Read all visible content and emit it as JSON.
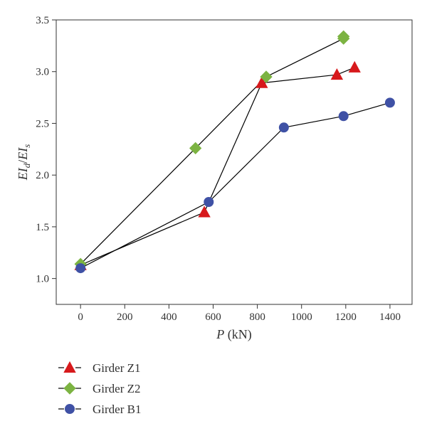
{
  "chart_data": {
    "type": "line",
    "xlabel": {
      "italic": "P",
      "rest": " (kN)"
    },
    "ylabel": {
      "a": "EI",
      "a_sub": "d",
      "sep": "/",
      "b": "EI",
      "b_sub": "s"
    },
    "xlim": [
      -110,
      1500
    ],
    "ylim": [
      0.75,
      3.5
    ],
    "xticks": [
      0,
      200,
      400,
      600,
      800,
      1000,
      1200,
      1400
    ],
    "yticks": [
      1.0,
      1.5,
      2.0,
      2.5,
      3.0,
      3.5
    ],
    "ytick_labels": [
      "1.0",
      "1.5",
      "2.0",
      "2.5",
      "3.0",
      "3.5"
    ],
    "grid": false,
    "legend_position": "below",
    "series": [
      {
        "name": "Girder Z1",
        "marker": "triangle",
        "color": "#d7191c",
        "x": [
          0,
          560,
          820,
          1160,
          1240
        ],
        "y": [
          1.13,
          1.64,
          2.89,
          2.97,
          3.04
        ]
      },
      {
        "name": "Girder Z2",
        "marker": "diamond",
        "color": "#7cb342",
        "x": [
          0,
          520,
          840,
          1190,
          1190
        ],
        "y": [
          1.14,
          2.26,
          2.95,
          3.32,
          3.34
        ]
      },
      {
        "name": "Girder B1",
        "marker": "circle",
        "color": "#3f51a5",
        "x": [
          0,
          580,
          920,
          1190,
          1400
        ],
        "y": [
          1.1,
          1.74,
          2.46,
          2.57,
          2.7
        ]
      }
    ]
  }
}
